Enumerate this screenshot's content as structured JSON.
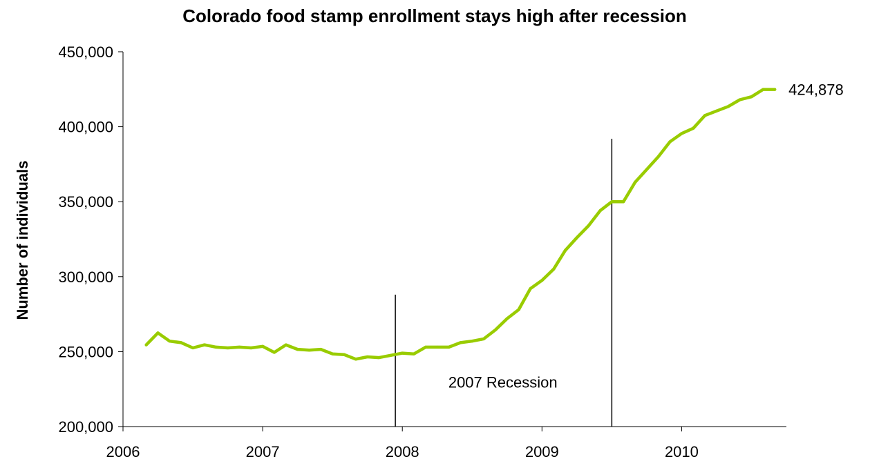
{
  "chart_data": {
    "type": "line",
    "title": "Colorado food stamp enrollment stays high after recession",
    "xlabel": "",
    "ylabel": "Number of individuals",
    "xlim": [
      2006,
      2010.75
    ],
    "ylim": [
      200000,
      450000
    ],
    "grid": false,
    "legend": "none",
    "x_ticks": [
      2006,
      2007,
      2008,
      2009,
      2010
    ],
    "x_tick_labels": [
      "2006",
      "2007",
      "2008",
      "2009",
      "2010"
    ],
    "y_ticks": [
      200000,
      250000,
      300000,
      350000,
      400000,
      450000
    ],
    "y_tick_labels": [
      "200,000",
      "250,000",
      "300,000",
      "350,000",
      "400,000",
      "450,000"
    ],
    "series": [
      {
        "color": "#99CC00",
        "x": [
          2006.1667,
          2006.25,
          2006.3333,
          2006.4167,
          2006.5,
          2006.5833,
          2006.6667,
          2006.75,
          2006.8333,
          2006.9167,
          2007.0,
          2007.0833,
          2007.1667,
          2007.25,
          2007.3333,
          2007.4167,
          2007.5,
          2007.5833,
          2007.6667,
          2007.75,
          2007.8333,
          2007.9167,
          2008.0,
          2008.0833,
          2008.1667,
          2008.25,
          2008.3333,
          2008.4167,
          2008.5,
          2008.5833,
          2008.6667,
          2008.75,
          2008.8333,
          2008.9167,
          2009.0,
          2009.0833,
          2009.1667,
          2009.25,
          2009.3333,
          2009.4167,
          2009.5,
          2009.5833,
          2009.6667,
          2009.75,
          2009.8333,
          2009.9167,
          2010.0,
          2010.0833,
          2010.1667,
          2010.25,
          2010.3333,
          2010.4167,
          2010.5,
          2010.5833,
          2010.6667
        ],
        "values": [
          254500,
          262500,
          257000,
          256000,
          252500,
          254500,
          253000,
          252500,
          253000,
          252500,
          253500,
          249500,
          254500,
          251500,
          251000,
          251500,
          248500,
          248000,
          245000,
          246500,
          246000,
          247500,
          249000,
          248500,
          253000,
          253000,
          253000,
          256000,
          257000,
          258500,
          264500,
          272000,
          278000,
          292000,
          297500,
          305000,
          317500,
          326000,
          334000,
          344000,
          350000,
          350000,
          363000,
          371500,
          380000,
          390000,
          395500,
          399000,
          407500,
          410500,
          413500,
          418000,
          420000,
          424878,
          424878
        ]
      }
    ],
    "end_label": "424,878",
    "annotations": {
      "recession_start_x": 2007.95,
      "recession_start_top": 288000,
      "recession_end_x": 2009.5,
      "recession_end_top": 392000,
      "recession_label": "2007 Recession",
      "recession_label_x": 2008.72,
      "recession_label_y": 226000
    }
  }
}
